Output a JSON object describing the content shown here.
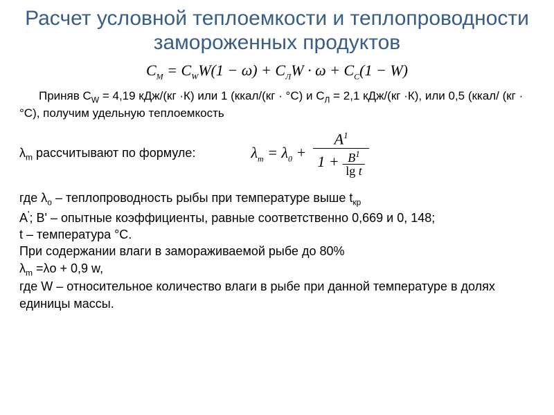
{
  "colors": {
    "title": "#385d8a",
    "text": "#000000",
    "background": "#ffffff"
  },
  "typography": {
    "title_fontsize": 30,
    "body_fontsize": 18,
    "formula_fontsize": 22,
    "title_family": "Arial",
    "formula_family": "Times New Roman"
  },
  "title": "Расчет условной теплоемкости и теплопроводности замороженных продуктов",
  "formula1": {
    "lhs": "C",
    "lhs_sub": "M",
    "eq": " = ",
    "t1": "C",
    "t1_sub": "W",
    "t2": "W(1 − ω) + ",
    "t3": "C",
    "t3_sub": "Л",
    "t4": "W · ω + ",
    "t5": "C",
    "t5_sub": "C",
    "t6": "(1 − W)"
  },
  "para1_a": "Приняв С",
  "para1_a_sub": "W",
  "para1_b": " = 4,19 кДж/(кг ·К) или 1 (ккал/(кг · °С) и С",
  "para1_b_sub": "Л",
  "para1_c": " = 2,1 кДж/(кг ·К), или 0,5 (ккал/ (кг · °С), получим удельную теплоемкость",
  "lambda_line_a": "λ",
  "lambda_line_a_sub": "m",
  "lambda_line_b": "  рассчитывают по формуле:",
  "formula2": {
    "lhs": "λ",
    "lhs_sub": "m",
    "eq": " = ",
    "t0": "λ",
    "t0_sub": "0",
    "plus": " + ",
    "A": "A",
    "A_sup": "1",
    "one": "1 + ",
    "B": "B",
    "B_sup": "1",
    "lg": "lg ",
    "t": "t"
  },
  "block": {
    "l1a": " где  λ",
    "l1a_sub": "о",
    "l1b": " – теплопроводность рыбы при температуре выше t",
    "l1b_sub": "кр",
    "l2a": "А",
    "l2a_sup": "'",
    "l2b": "; В' – опытные коэффициенты, равные соответственно 0,669 и  0, 148;",
    "l3": "t  – температура  °С.",
    "l4": "При содержании влаги в замораживаемой рыбе до 80%",
    "l5a": "λ",
    "l5a_sub": "m",
    "l5b": " =λо + 0,9 w,",
    "l6": "где W – относительное количество влаги в рыбе при данной температуре в долях единицы массы."
  }
}
